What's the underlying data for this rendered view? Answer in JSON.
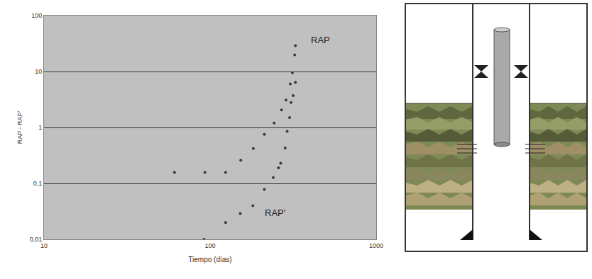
{
  "chart_data": {
    "type": "scatter",
    "x_label": "Tiempo (días)",
    "y_label": "RAP - RAP'",
    "log": true,
    "grid": "y",
    "xlim": [
      10,
      1000
    ],
    "ylim": [
      0.01,
      100
    ],
    "xticks": [
      10,
      100,
      1000
    ],
    "yticks": [
      {
        "value": 0.01,
        "label": "0,01"
      },
      {
        "value": 0.1,
        "label": "0,1"
      },
      1,
      10,
      100
    ],
    "series": [
      {
        "name": "RAP",
        "color": "#3a3a3a",
        "marker": "circle",
        "x": [
          61,
          93,
          124,
          153,
          182,
          212,
          243,
          269,
          286,
          304,
          313,
          323,
          326
        ],
        "values": [
          0.157,
          0.157,
          0.157,
          0.26,
          0.42,
          0.75,
          1.2,
          2.05,
          3.1,
          6.0,
          9.5,
          19.8,
          29
        ]
      },
      {
        "name": "RAP'",
        "color": "#3a3a3a",
        "marker": "circle",
        "x": [
          92,
          124,
          152,
          181,
          212,
          240,
          258,
          266,
          283,
          291,
          301,
          307,
          316,
          326
        ],
        "values": [
          0.01,
          0.02,
          0.029,
          0.04,
          0.078,
          0.127,
          0.19,
          0.23,
          0.43,
          0.85,
          1.5,
          2.8,
          3.7,
          6.4
        ]
      }
    ]
  }
}
